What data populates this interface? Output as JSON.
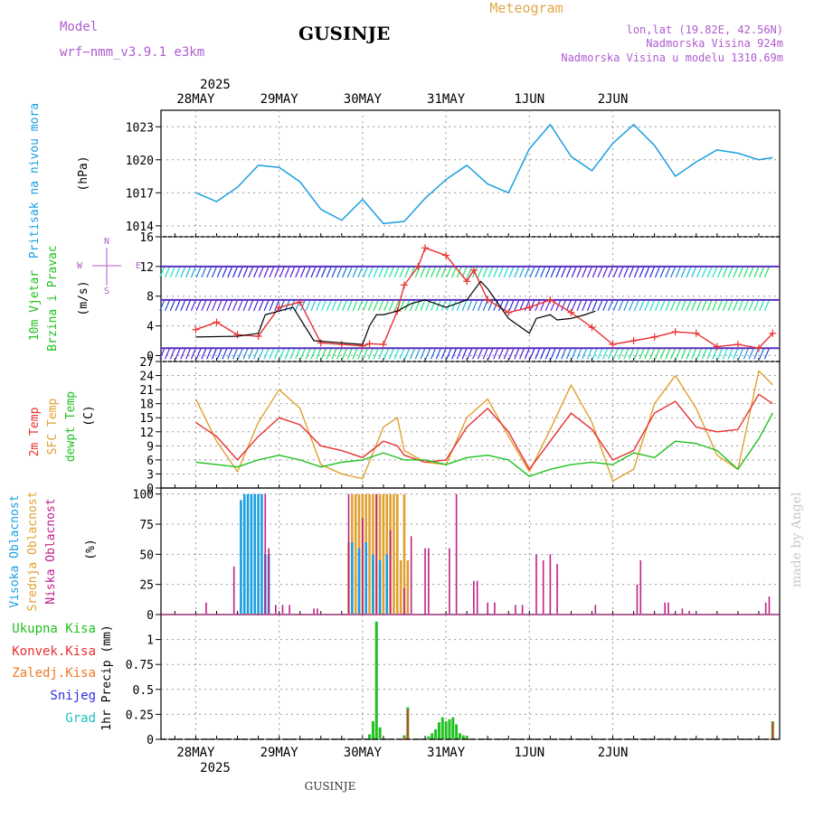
{
  "header": {
    "model_label": "Model",
    "model_name": "wrf−nmm_v3.9.1  e3km",
    "station": "GUSINJE",
    "product": "Meteogram",
    "lonlat": "lon,lat (19.82E, 42.56N)",
    "elevation": "Nadmorska Visina 924m",
    "model_elevation": "Nadmorska Visina u modelu 1310.69m",
    "year": "2025",
    "footer_station": "GUSINJE",
    "credit": "made by Angel"
  },
  "colors": {
    "pressure": "#1a9fe0",
    "wind_speed": "#e83030",
    "gust": "#000000",
    "t2m": "#e83030",
    "sfc": "#e0a030",
    "dewpoint": "#20c020",
    "cloud_high": "#1a9fe0",
    "cloud_mid": "#e0a030",
    "cloud_low": "#c0208a",
    "total_precip": "#20c020",
    "conv_precip": "#e83030",
    "freezing": "#f07820",
    "snow": "#3030e0",
    "hail": "#20c0c0"
  },
  "chart_data": [
    {
      "panel": "pressure",
      "type": "line",
      "ylabel_a": "Pritisak na nivou mora",
      "ylabel_b": "(hPa)",
      "ylim": [
        1013,
        1024.5
      ],
      "yticks": [
        "1014",
        "1017",
        "1020",
        "1023"
      ],
      "x_days": [
        "28MAY",
        "29MAY",
        "30MAY",
        "31MAY",
        "1JUN",
        "2JUN"
      ],
      "x_hours": [
        0,
        6,
        12,
        18,
        24,
        30,
        36,
        42,
        48,
        54,
        60,
        66,
        72,
        78,
        84,
        90,
        96,
        102,
        108,
        114,
        120,
        126,
        132,
        138,
        144,
        150,
        156,
        162,
        166
      ],
      "series": [
        {
          "name": "Pritisak",
          "values": [
            1017,
            1016.2,
            1017.5,
            1019.5,
            1019.3,
            1018,
            1015.5,
            1014.5,
            1016.4,
            1014.2,
            1014.4,
            1016.5,
            1018.2,
            1019.5,
            1017.8,
            1017,
            1021,
            1023.2,
            1020.3,
            1019,
            1021.5,
            1023.2,
            1021.3,
            1018.5,
            1019.8,
            1020.9,
            1020.6,
            1020,
            1020.2
          ]
        }
      ]
    },
    {
      "panel": "wind",
      "type": "line",
      "ylabel_a": "10m Vjetar",
      "ylabel_b": "Brzina i Pravac",
      "ylabel_unit": "(m/s)",
      "compass": "N",
      "compass_w": "W",
      "compass_e": "E",
      "compass_s": "S",
      "ylim": [
        -0.8,
        16
      ],
      "yticks": [
        "0",
        "4",
        "8",
        "12",
        "16"
      ],
      "barb_rows": [
        12,
        7.5,
        1
      ],
      "series": [
        {
          "name": "Brzina",
          "x": [
            0,
            6,
            12,
            18,
            24,
            30,
            36,
            42,
            48,
            50,
            54,
            58,
            60,
            64,
            66,
            72,
            78,
            80,
            84,
            90,
            96,
            102,
            108,
            114,
            120,
            126,
            132,
            138,
            144,
            150,
            156,
            162,
            166
          ],
          "values": [
            3.5,
            4.5,
            2.8,
            2.6,
            6.5,
            7.2,
            1.7,
            1.5,
            1.3,
            1.6,
            1.5,
            6,
            9.5,
            12,
            14.5,
            13.5,
            10,
            11.5,
            7.5,
            5.8,
            6.5,
            7.5,
            5.8,
            3.8,
            1.5,
            2,
            2.5,
            3.2,
            3,
            1.2,
            1.5,
            1,
            3
          ]
        },
        {
          "name": "Udar",
          "x": [
            0,
            12,
            18,
            20,
            24,
            28,
            34,
            48,
            50,
            52,
            54,
            58,
            62,
            66,
            72,
            78,
            82,
            84,
            90,
            96,
            98,
            102,
            104,
            108,
            112,
            115
          ],
          "values": [
            2.5,
            2.6,
            3,
            5.5,
            6,
            6.5,
            2,
            1.5,
            4,
            5.5,
            5.5,
            6,
            7,
            7.5,
            6.5,
            7.5,
            10,
            9,
            5,
            3,
            5,
            5.5,
            4.8,
            5,
            5.5,
            6
          ]
        }
      ]
    },
    {
      "panel": "temperature",
      "type": "line",
      "ylabel_a": "2m Temp",
      "ylabel_b": "SFC Temp",
      "ylabel_c": "dewpt Temp",
      "ylabel_unit": "(C)",
      "ylim": [
        0,
        27
      ],
      "yticks": [
        "0",
        "3",
        "6",
        "9",
        "12",
        "15",
        "18",
        "21",
        "24",
        "27"
      ],
      "series": [
        {
          "name": "2m Temp",
          "x": [
            0,
            6,
            12,
            18,
            24,
            30,
            36,
            42,
            48,
            54,
            58,
            60,
            66,
            72,
            78,
            84,
            90,
            96,
            102,
            108,
            114,
            120,
            126,
            132,
            138,
            144,
            150,
            156,
            162,
            166
          ],
          "values": [
            14,
            11,
            6,
            11,
            15,
            13.5,
            9,
            8,
            6.5,
            10,
            9,
            7,
            5.5,
            6,
            13,
            17,
            12,
            4,
            10,
            16,
            12.5,
            6,
            8,
            16,
            18.5,
            13,
            12,
            12.5,
            20,
            18
          ]
        },
        {
          "name": "SFC Temp",
          "x": [
            0,
            6,
            12,
            18,
            24,
            30,
            36,
            42,
            48,
            54,
            58,
            60,
            66,
            72,
            78,
            84,
            90,
            96,
            102,
            108,
            114,
            120,
            126,
            132,
            138,
            144,
            150,
            156,
            162,
            166
          ],
          "values": [
            19,
            10,
            3.5,
            14,
            21,
            17,
            5,
            3,
            2,
            13,
            15,
            8,
            5.5,
            5,
            15,
            19,
            11,
            3.5,
            12.5,
            22,
            14,
            1.5,
            4,
            18,
            24,
            17,
            7,
            4,
            25,
            22
          ]
        },
        {
          "name": "dewpt Temp",
          "x": [
            0,
            6,
            12,
            18,
            24,
            30,
            36,
            42,
            48,
            54,
            60,
            66,
            72,
            78,
            84,
            90,
            96,
            102,
            108,
            114,
            120,
            126,
            132,
            138,
            144,
            150,
            156,
            162,
            166
          ],
          "values": [
            5.5,
            5,
            4.5,
            6,
            7,
            6,
            4.5,
            5.5,
            6,
            7.5,
            6,
            6,
            5,
            6.5,
            7,
            6,
            2.5,
            4,
            5,
            5.5,
            5,
            7.5,
            6.5,
            10,
            9.5,
            8,
            4,
            10.5,
            16
          ]
        }
      ]
    },
    {
      "panel": "clouds",
      "type": "bar",
      "ylabel_a": "Visoka Oblacnost",
      "ylabel_b": "Srednja Oblacnost",
      "ylabel_c": "Niska Oblacnost",
      "ylabel_unit": "(%)",
      "ylim": [
        0,
        105
      ],
      "yticks": [
        "0",
        "25",
        "50",
        "75",
        "100"
      ],
      "series": [
        {
          "name": "Visoka",
          "x": [
            13,
            14,
            15,
            16,
            17,
            18,
            19,
            20,
            21,
            45,
            47,
            49,
            51,
            53,
            55
          ],
          "values": [
            95,
            100,
            100,
            100,
            100,
            100,
            100,
            50,
            50,
            60,
            55,
            60,
            50,
            45,
            50
          ]
        },
        {
          "name": "Srednja",
          "x": [
            44,
            45,
            46,
            47,
            48,
            49,
            50,
            51,
            52,
            53,
            54,
            55,
            56,
            57,
            58,
            59,
            60,
            61
          ],
          "values": [
            60,
            100,
            100,
            100,
            100,
            100,
            100,
            100,
            100,
            100,
            100,
            100,
            100,
            100,
            100,
            45,
            100,
            45
          ]
        },
        {
          "name": "Niska",
          "x": [
            3,
            11,
            20,
            21,
            23,
            25,
            27,
            34,
            35,
            44,
            48,
            52,
            56,
            60,
            62,
            66,
            67,
            73,
            75,
            80,
            81,
            84,
            86,
            92,
            94,
            98,
            100,
            102,
            104,
            115,
            127,
            128,
            135,
            136,
            140,
            142,
            164,
            165
          ],
          "values": [
            10,
            40,
            100,
            55,
            8,
            8,
            8,
            5,
            5,
            100,
            80,
            100,
            70,
            22,
            65,
            55,
            55,
            55,
            100,
            28,
            28,
            10,
            10,
            8,
            8,
            50,
            45,
            50,
            42,
            8,
            25,
            45,
            10,
            10,
            5,
            3,
            10,
            15
          ]
        }
      ]
    },
    {
      "panel": "precip",
      "type": "bar",
      "ylabel_a": "Ukupna Kisa",
      "ylabel_b": "Konvek.Kisa",
      "ylabel_c": "Zaledj.Kisa",
      "ylabel_d": "Snijeg",
      "ylabel_e": "Grad",
      "ylabel_unit": "1hr Precip (mm)",
      "ylim": [
        0,
        1.25
      ],
      "yticks": [
        "0",
        "0.25",
        "0.5",
        "0.75",
        "1"
      ],
      "series": [
        {
          "name": "Ukupna Kisa",
          "x": [
            50,
            51,
            52,
            53,
            60,
            61,
            67,
            68,
            69,
            70,
            71,
            72,
            73,
            74,
            75,
            76,
            77,
            78,
            166
          ],
          "values": [
            0.05,
            0.18,
            1.18,
            0.12,
            0.04,
            0.32,
            0.03,
            0.06,
            0.1,
            0.17,
            0.22,
            0.18,
            0.2,
            0.22,
            0.15,
            0.06,
            0.04,
            0.03,
            0.18
          ]
        },
        {
          "name": "Konvek.Kisa",
          "x": [
            60,
            61,
            166
          ],
          "values": [
            0.02,
            0.3,
            0.17
          ]
        }
      ]
    }
  ]
}
